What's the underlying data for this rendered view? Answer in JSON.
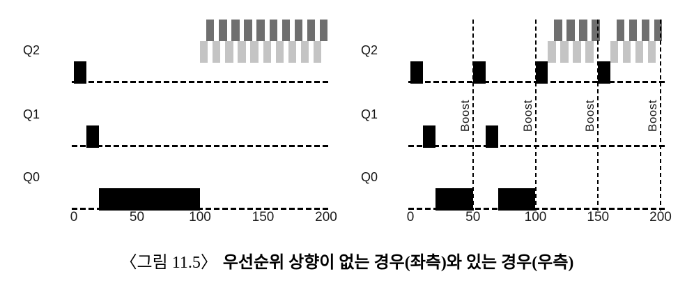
{
  "figure": {
    "caption_prefix": "〈그림 11.5〉",
    "caption_text": "우선순위 상향이 없는 경우(좌측)와 있는 경우(우측)"
  },
  "colors": {
    "job_a_black": "#000000",
    "job_b_light_gray": "#c4c4c4",
    "job_c_dark_gray": "#6f6f6f"
  },
  "chart_data": [
    {
      "type": "timeline",
      "side": "left",
      "rows": [
        {
          "label": "Q2",
          "black_segments": [
            [
              0,
              10
            ]
          ],
          "rr_patterns": [
            {
              "start": 100,
              "end": 200,
              "slices": 10
            }
          ]
        },
        {
          "label": "Q1",
          "black_segments": [
            [
              10,
              20
            ]
          ],
          "rr_patterns": []
        },
        {
          "label": "Q0",
          "black_segments": [
            [
              20,
              100
            ]
          ],
          "rr_patterns": []
        }
      ],
      "x_ticks": [
        "0",
        "50",
        "100",
        "150",
        "200"
      ],
      "x_tick_values": [
        0,
        50,
        100,
        150,
        200
      ],
      "xlim": [
        0,
        200
      ],
      "boost_lines": []
    },
    {
      "type": "timeline",
      "side": "right",
      "rows": [
        {
          "label": "Q2",
          "black_segments": [
            [
              0,
              10
            ],
            [
              50,
              60
            ],
            [
              100,
              110
            ],
            [
              150,
              160
            ]
          ],
          "rr_patterns": [
            {
              "start": 110,
              "end": 150,
              "slices": 4
            },
            {
              "start": 160,
              "end": 200,
              "slices": 4
            }
          ]
        },
        {
          "label": "Q1",
          "black_segments": [
            [
              10,
              20
            ],
            [
              60,
              70
            ]
          ],
          "rr_patterns": []
        },
        {
          "label": "Q0",
          "black_segments": [
            [
              20,
              50
            ],
            [
              70,
              100
            ]
          ],
          "rr_patterns": []
        }
      ],
      "x_ticks": [
        "0",
        "50",
        "100",
        "150",
        "200"
      ],
      "x_tick_values": [
        0,
        50,
        100,
        150,
        200
      ],
      "xlim": [
        0,
        200
      ],
      "boost_lines": [
        {
          "time": 50,
          "label": "Boost"
        },
        {
          "time": 100,
          "label": "Boost"
        },
        {
          "time": 150,
          "label": "Boost"
        },
        {
          "time": 200,
          "label": "Boost"
        }
      ]
    }
  ]
}
